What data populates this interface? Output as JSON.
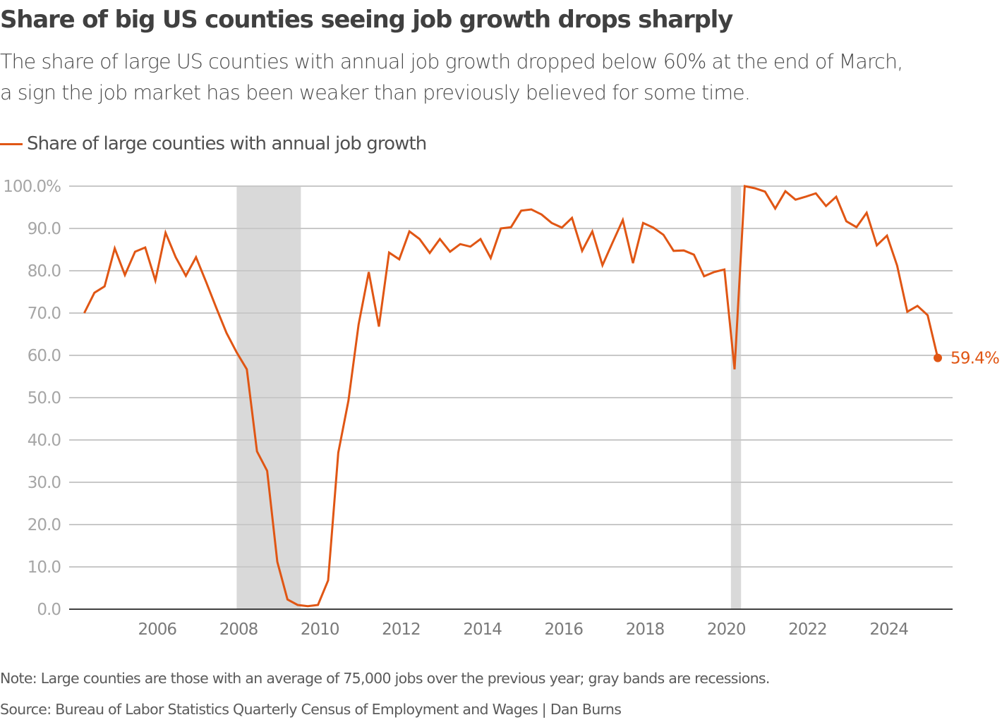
{
  "header": {
    "title": "Share of big US counties seeing job growth drops sharply",
    "subtitle_line1": "The share of large US counties with annual job growth dropped below 60% at the end of March,",
    "subtitle_line2": "a sign the job market has been weaker than previously believed for some time."
  },
  "legend": {
    "label": "Share of large counties with annual job growth",
    "color": "#e05614"
  },
  "footer": {
    "note": "Note: Large counties are those with an average of 75,000 jobs over the previous year; gray bands are recessions.",
    "source": "Source: Bureau of Labor Statistics Quarterly Census of Employment and Wages | Dan Burns"
  },
  "chart_data": {
    "type": "line",
    "title": "Share of big US counties seeing job growth drops sharply",
    "xlabel": "",
    "ylabel": "",
    "x_start": "2004 Q1",
    "x_frequency": "quarterly",
    "x_range": [
      2004.0,
      2025.5
    ],
    "xticks": [
      2006,
      2008,
      2010,
      2012,
      2014,
      2016,
      2018,
      2020,
      2022,
      2024
    ],
    "xtick_labels": [
      "2006",
      "2008",
      "2010",
      "2012",
      "2014",
      "2016",
      "2018",
      "2020",
      "2022",
      "2024"
    ],
    "ylim": [
      0,
      100
    ],
    "yticks": [
      0,
      10,
      20,
      30,
      40,
      50,
      60,
      70,
      80,
      90,
      100
    ],
    "ytick_labels": [
      "0.0",
      "10.0",
      "20.0",
      "30.0",
      "40.0",
      "50.0",
      "60.0",
      "70.0",
      "80.0",
      "90.0",
      "100.0%"
    ],
    "grid": "horizontal",
    "legend_position": "top-left",
    "recessions": [
      {
        "label": "Great Recession",
        "start": 2007.92,
        "end": 2009.5
      },
      {
        "label": "COVID recession",
        "start": 2020.08,
        "end": 2020.33
      }
    ],
    "series": [
      {
        "name": "Share of large counties with annual job growth",
        "color": "#e05614",
        "x": [
          2004.17,
          2004.42,
          2004.67,
          2004.92,
          2005.17,
          2005.42,
          2005.67,
          2005.92,
          2006.17,
          2006.42,
          2006.67,
          2006.92,
          2007.17,
          2007.42,
          2007.67,
          2007.92,
          2008.17,
          2008.42,
          2008.67,
          2008.92,
          2009.17,
          2009.42,
          2009.67,
          2009.92,
          2010.17,
          2010.42,
          2010.67,
          2010.92,
          2011.17,
          2011.42,
          2011.67,
          2011.92,
          2012.17,
          2012.42,
          2012.67,
          2012.92,
          2013.17,
          2013.42,
          2013.67,
          2013.92,
          2014.17,
          2014.42,
          2014.67,
          2014.92,
          2015.17,
          2015.42,
          2015.67,
          2015.92,
          2016.17,
          2016.42,
          2016.67,
          2016.92,
          2017.17,
          2017.42,
          2017.67,
          2017.92,
          2018.17,
          2018.42,
          2018.67,
          2018.92,
          2019.17,
          2019.42,
          2019.67,
          2019.92,
          2020.17,
          2020.42,
          2020.67,
          2020.92,
          2021.17,
          2021.42,
          2021.67,
          2021.92,
          2022.17,
          2022.42,
          2022.67,
          2022.92,
          2023.17,
          2023.42,
          2023.67,
          2023.92,
          2024.17,
          2024.42,
          2024.67,
          2024.92,
          2025.17
        ],
        "values": [
          70.0,
          74.8,
          76.3,
          85.3,
          79.0,
          84.5,
          85.5,
          77.7,
          89.0,
          83.2,
          78.8,
          83.2,
          77.3,
          71.2,
          65.3,
          60.7,
          56.7,
          37.3,
          32.7,
          11.2,
          2.3,
          1.0,
          0.7,
          1.0,
          6.8,
          37.0,
          49.3,
          67.3,
          79.7,
          66.8,
          84.3,
          82.7,
          89.3,
          87.5,
          84.2,
          87.5,
          84.5,
          86.3,
          85.7,
          87.5,
          83.0,
          90.0,
          90.3,
          94.2,
          94.5,
          93.3,
          91.3,
          90.2,
          92.5,
          84.7,
          89.3,
          81.3,
          86.7,
          92.0,
          81.8,
          91.3,
          90.2,
          88.5,
          84.7,
          84.8,
          83.8,
          78.7,
          79.7,
          80.3,
          56.7,
          100.0,
          99.5,
          98.7,
          94.7,
          98.8,
          96.8,
          97.5,
          98.3,
          95.3,
          97.5,
          91.7,
          90.3,
          93.7,
          86.0,
          88.3,
          81.2,
          70.3,
          71.7,
          69.5,
          59.4
        ]
      }
    ],
    "annotations": [
      {
        "text": "59.4%",
        "x": 2025.17,
        "y": 59.4,
        "marker": "dot"
      }
    ]
  }
}
